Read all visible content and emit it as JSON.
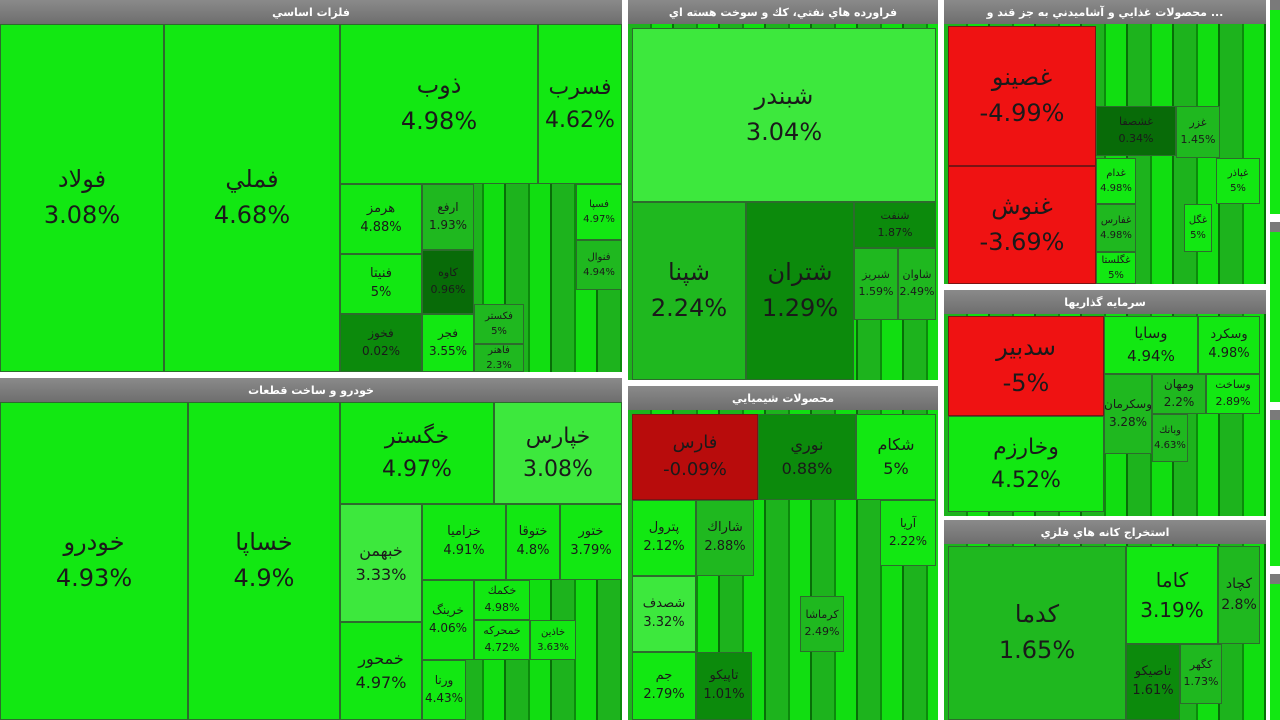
{
  "colors": {
    "strong_green": "#12e812",
    "green": "#3de83d",
    "mid_green": "#1fb81f",
    "dark_green": "#0c8a0c",
    "deep_green": "#086b08",
    "red": "#ef1212",
    "dark_red": "#b80c0c",
    "header_bg": "#7a7a7a"
  },
  "panels": [
    {
      "title": "فلزات اساسي"
    },
    {
      "title": "فراورده هاي نفتي، كك و سوخت هسته اي"
    },
    {
      "title": "... محصولات غذايي و آشاميدني به جز قند و"
    },
    {
      "title": "خودرو و ساخت قطعات"
    },
    {
      "title": "محصولات شيميايي"
    },
    {
      "title": "سرمايه گذاريها"
    },
    {
      "title": "استخراج كانه هاي فلزي"
    }
  ],
  "chart_data": {
    "type": "treemap",
    "groups": [
      {
        "name": "فلزات اساسي",
        "cells": [
          {
            "symbol": "فولاد",
            "change": "3.08%"
          },
          {
            "symbol": "فملي",
            "change": "4.68%"
          },
          {
            "symbol": "ذوب",
            "change": "4.98%"
          },
          {
            "symbol": "فسرب",
            "change": "4.62%"
          },
          {
            "symbol": "هرمز",
            "change": "4.88%"
          },
          {
            "symbol": "فنيتا",
            "change": "5%"
          },
          {
            "symbol": "فخوز",
            "change": "0.02%"
          },
          {
            "symbol": "ارفع",
            "change": "1.93%"
          },
          {
            "symbol": "كاوه",
            "change": "0.96%"
          },
          {
            "symbol": "فجر",
            "change": "3.55%"
          },
          {
            "symbol": "فسپا",
            "change": "4.97%"
          },
          {
            "symbol": "فنوال",
            "change": "4.94%"
          },
          {
            "symbol": "فكستر",
            "change": "5%"
          },
          {
            "symbol": "فاهنر",
            "change": "2.3%"
          }
        ]
      },
      {
        "name": "فراورده هاي نفتي، كك و سوخت هسته اي",
        "cells": [
          {
            "symbol": "شبندر",
            "change": "3.04%"
          },
          {
            "symbol": "شپنا",
            "change": "2.24%"
          },
          {
            "symbol": "شتران",
            "change": "1.29%"
          },
          {
            "symbol": "شنفت",
            "change": "1.87%"
          },
          {
            "symbol": "شبريز",
            "change": "1.59%"
          },
          {
            "symbol": "شاوان",
            "change": "2.49%"
          }
        ]
      },
      {
        "name": "محصولات غذايي و آشاميدني به جز قند و",
        "cells": [
          {
            "symbol": "غصينو",
            "change": "-4.99%"
          },
          {
            "symbol": "غنوش",
            "change": "-3.69%"
          },
          {
            "symbol": "غشصفا",
            "change": "0.34%"
          },
          {
            "symbol": "غزر",
            "change": "1.45%"
          },
          {
            "symbol": "غدام",
            "change": "4.98%"
          },
          {
            "symbol": "غپاذر",
            "change": "5%"
          },
          {
            "symbol": "غفارس",
            "change": "4.98%"
          },
          {
            "symbol": "غگل",
            "change": "5%"
          },
          {
            "symbol": "غگلستا",
            "change": "5%"
          }
        ]
      },
      {
        "name": "خودرو و ساخت قطعات",
        "cells": [
          {
            "symbol": "خودرو",
            "change": "4.93%"
          },
          {
            "symbol": "خساپا",
            "change": "4.9%"
          },
          {
            "symbol": "خگستر",
            "change": "4.97%"
          },
          {
            "symbol": "خپارس",
            "change": "3.08%"
          },
          {
            "symbol": "خبهمن",
            "change": "3.33%"
          },
          {
            "symbol": "خزاميا",
            "change": "4.91%"
          },
          {
            "symbol": "ختوقا",
            "change": "4.8%"
          },
          {
            "symbol": "ختور",
            "change": "3.79%"
          },
          {
            "symbol": "خمحور",
            "change": "4.97%"
          },
          {
            "symbol": "خرينگ",
            "change": "4.06%"
          },
          {
            "symbol": "خكمك",
            "change": "4.98%"
          },
          {
            "symbol": "خمحركه",
            "change": "4.72%"
          },
          {
            "symbol": "خاذين",
            "change": "3.63%"
          },
          {
            "symbol": "ورنا",
            "change": "4.43%"
          }
        ]
      },
      {
        "name": "محصولات شيميايي",
        "cells": [
          {
            "symbol": "فارس",
            "change": "-0.09%"
          },
          {
            "symbol": "نوري",
            "change": "0.88%"
          },
          {
            "symbol": "شكام",
            "change": "5%"
          },
          {
            "symbol": "پترول",
            "change": "2.12%"
          },
          {
            "symbol": "شاراك",
            "change": "2.88%"
          },
          {
            "symbol": "شصدف",
            "change": "3.32%"
          },
          {
            "symbol": "جم",
            "change": "2.79%"
          },
          {
            "symbol": "تاپيكو",
            "change": "1.01%"
          },
          {
            "symbol": "آريا",
            "change": "2.22%"
          },
          {
            "symbol": "كرماشا",
            "change": "2.49%"
          }
        ]
      },
      {
        "name": "سرمايه گذاريها",
        "cells": [
          {
            "symbol": "سدبير",
            "change": "-5%"
          },
          {
            "symbol": "وسايا",
            "change": "4.94%"
          },
          {
            "symbol": "وسكرد",
            "change": "4.98%"
          },
          {
            "symbol": "وخارزم",
            "change": "4.52%"
          },
          {
            "symbol": "وسكرمان",
            "change": "3.28%"
          },
          {
            "symbol": "ومهان",
            "change": "2.2%"
          },
          {
            "symbol": "وساخت",
            "change": "2.89%"
          },
          {
            "symbol": "وبانك",
            "change": "4.63%"
          }
        ]
      },
      {
        "name": "استخراج كانه هاي فلزي",
        "cells": [
          {
            "symbol": "كدما",
            "change": "1.65%"
          },
          {
            "symbol": "كاما",
            "change": "3.19%"
          },
          {
            "symbol": "كچاد",
            "change": "2.8%"
          },
          {
            "symbol": "تاصيكو",
            "change": "1.61%"
          },
          {
            "symbol": "كگهر",
            "change": "1.73%"
          }
        ]
      }
    ]
  }
}
